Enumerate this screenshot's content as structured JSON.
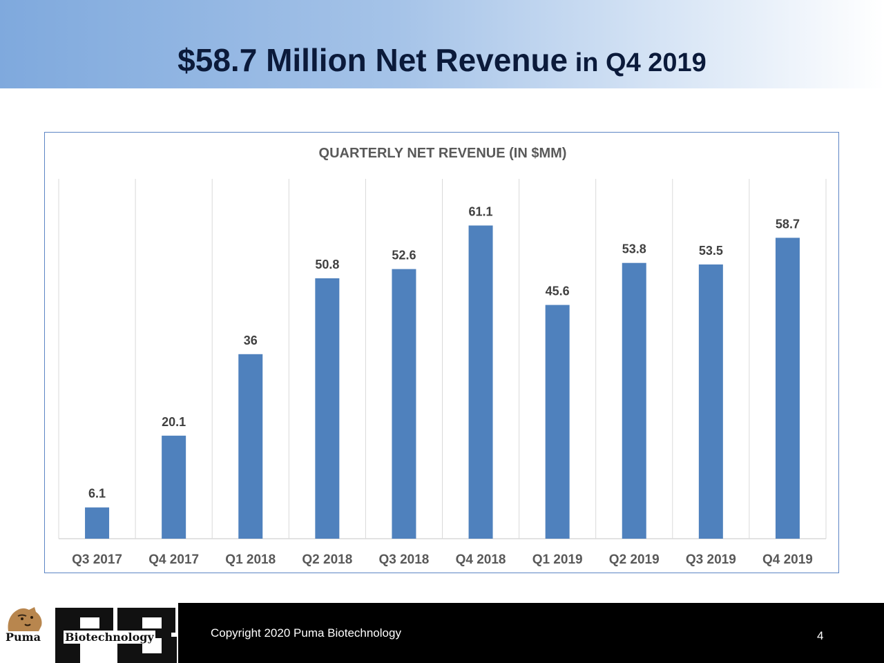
{
  "slide": {
    "title_main": "$58.7 Million Net Revenue",
    "title_sub": " in Q4  2019"
  },
  "chart_data": {
    "type": "bar",
    "title": "QUARTERLY NET REVENUE (IN $MM)",
    "categories": [
      "Q3 2017",
      "Q4 2017",
      "Q1 2018",
      "Q2 2018",
      "Q3 2018",
      "Q4 2018",
      "Q1 2019",
      "Q2 2019",
      "Q3 2019",
      "Q4 2019"
    ],
    "values": [
      6.1,
      20.1,
      36,
      50.8,
      52.6,
      61.1,
      45.6,
      53.8,
      53.5,
      58.7
    ],
    "value_labels": [
      "6.1",
      "20.1",
      "36",
      "50.8",
      "52.6",
      "61.1",
      "45.6",
      "53.8",
      "53.5",
      "58.7"
    ],
    "xlabel": "",
    "ylabel": "",
    "ylim": [
      0,
      70
    ],
    "grid": "vertical separators",
    "bar_color": "#4f81bd"
  },
  "footer": {
    "logo_word_1": "Puma",
    "logo_word_2": "Biotechnology",
    "copyright": "Copyright 2020 Puma Biotechnology",
    "page_number": "4"
  }
}
